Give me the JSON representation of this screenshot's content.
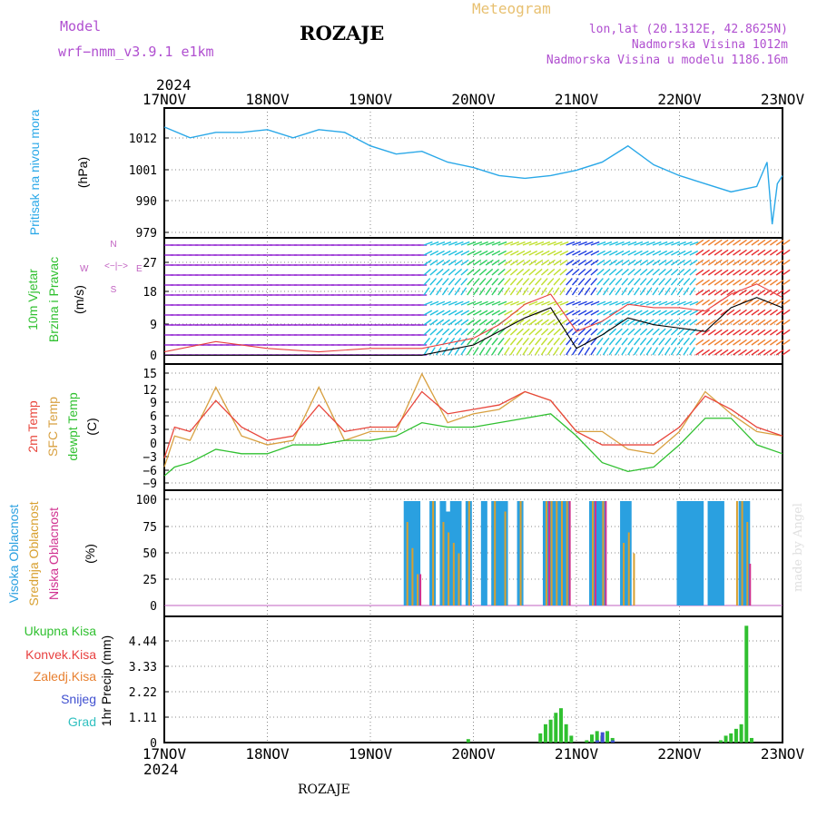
{
  "header": {
    "model_label": "Model",
    "model_name": "wrf−nmm_v3.9.1 e1km",
    "station": "ROZAJE",
    "meteogram": "Meteogram",
    "lonlat": "lon,lat (20.1312E, 42.8625N)",
    "altitude": "Nadmorska Visina 1012m",
    "model_altitude": "Nadmorska Visina u modelu 1186.16m"
  },
  "axes": {
    "year_top": "2024",
    "year_bottom": "2024",
    "dates": [
      "17NOV",
      "18NOV",
      "19NOV",
      "20NOV",
      "21NOV",
      "22NOV",
      "23NOV"
    ]
  },
  "footer": {
    "station": "ROZAJE",
    "credit": "made by Angel"
  },
  "panel_labels": {
    "pressure": {
      "name": "Pritisak na nivou mora",
      "unit": "(hPa)"
    },
    "wind": {
      "name1": "10m Vjetar",
      "name2": "Brzina i Pravac",
      "unit": "(m/s)",
      "compass_w": "W",
      "compass_e": "E",
      "compass_n": "N",
      "compass_s": "S"
    },
    "temp": {
      "t2m": "2m Temp",
      "sfc": "SFC Temp",
      "dew": "dewpt Temp",
      "unit": "(C)"
    },
    "cloud": {
      "high": "Visoka Oblacnost",
      "mid": "Srednja Oblacnost",
      "low": "Niska Oblacnost",
      "unit": "(%)"
    },
    "precip": {
      "total": "Ukupna Kisa",
      "conv": "Konvek.Kisa",
      "frozen": "Zaledj.Kisa",
      "snow": "Snijeg",
      "hail": "Grad",
      "unit": "1hr Precip (mm)"
    }
  },
  "colors": {
    "pressure": "#2aa8e8",
    "t2m": "#e8463c",
    "sfc": "#d8a040",
    "dew": "#30c030",
    "high": "#2aa0e0",
    "mid": "#d8a030",
    "low": "#d03090",
    "total": "#30c030",
    "conv": "#e84040",
    "frozen": "#e88030",
    "snow": "#4050d0",
    "hail": "#30c0c0"
  },
  "chart_data": [
    {
      "type": "line",
      "title": "Pritisak na nivou mora (hPa)",
      "yticks": [
        "1012",
        "1001",
        "990",
        "979"
      ],
      "ylim": [
        979,
        1023
      ],
      "x": [
        0,
        0.25,
        0.5,
        0.75,
        1,
        1.25,
        1.5,
        1.75,
        2,
        2.25,
        2.5,
        2.75,
        3,
        3.25,
        3.5,
        3.75,
        4,
        4.25,
        4.5,
        4.75,
        5,
        5.25,
        5.5,
        5.75,
        5.85,
        5.9,
        5.95,
        6
      ],
      "series": [
        {
          "name": "Pritisak na nivou mora",
          "values": [
            1018,
            1014,
            1016,
            1016,
            1017,
            1014,
            1017,
            1016,
            1011,
            1008,
            1009,
            1005,
            1003,
            1000,
            999,
            1000,
            1002,
            1005,
            1011,
            1004,
            1000,
            997,
            994,
            996,
            1005,
            982,
            997,
            1000
          ]
        }
      ]
    },
    {
      "type": "line",
      "title": "10m Vjetar Brzina i Pravac (m/s)",
      "yticks": [
        "27",
        "18",
        "9",
        "0"
      ],
      "ylim": [
        0,
        34
      ],
      "x": [
        0,
        0.5,
        1,
        1.5,
        2,
        2.5,
        3,
        3.25,
        3.5,
        3.75,
        4,
        4.25,
        4.5,
        4.75,
        5,
        5.25,
        5.5,
        5.75,
        6
      ],
      "series": [
        {
          "name": "10m Vjetar",
          "values": [
            1,
            1,
            1,
            1,
            1,
            1,
            4,
            8,
            12,
            15,
            3,
            7,
            12,
            10,
            9,
            8,
            15,
            18,
            15
          ]
        },
        {
          "name": "Brzina i Pravac",
          "values": [
            2,
            5,
            3,
            2,
            3,
            3,
            6,
            10,
            16,
            19,
            8,
            11,
            16,
            15,
            15,
            14,
            19,
            22,
            18
          ]
        }
      ]
    },
    {
      "type": "line",
      "title": "2m Temp / SFC Temp / dewpt Temp (C)",
      "yticks": [
        "15",
        "12",
        "9",
        "6",
        "3",
        "0",
        "−3",
        "−6",
        "−9"
      ],
      "ylim": [
        -10,
        16
      ],
      "x": [
        0,
        0.1,
        0.25,
        0.5,
        0.75,
        1,
        1.25,
        1.5,
        1.75,
        2,
        2.25,
        2.5,
        2.75,
        3,
        3.25,
        3.5,
        3.75,
        4,
        4.25,
        4.5,
        4.75,
        5,
        5.25,
        5.5,
        5.75,
        6
      ],
      "series": [
        {
          "name": "2m Temp",
          "values": [
            -4,
            3,
            2,
            9,
            3,
            0,
            1,
            8,
            2,
            3,
            3,
            11,
            6,
            7,
            8,
            11,
            9,
            2,
            -1,
            -1,
            -1,
            3,
            10,
            7,
            3,
            1
          ]
        },
        {
          "name": "SFC Temp",
          "values": [
            -6,
            1,
            0,
            12,
            1,
            -1,
            0,
            12,
            0,
            2,
            2,
            15,
            4,
            6,
            7,
            11,
            9,
            2,
            2,
            -2,
            -3,
            2,
            11,
            6,
            2,
            1
          ]
        },
        {
          "name": "dewpt Temp",
          "values": [
            -8,
            -6,
            -5,
            -2,
            -3,
            -3,
            -1,
            -1,
            0,
            0,
            1,
            4,
            3,
            3,
            4,
            5,
            6,
            1,
            -5,
            -7,
            -6,
            -1,
            5,
            5,
            -1,
            -3
          ]
        }
      ]
    },
    {
      "type": "bar",
      "title": "Visoka / Srednja / Niska Oblacnost (%)",
      "yticks": [
        "100",
        "75",
        "50",
        "25",
        "0"
      ],
      "ylim": [
        0,
        100
      ],
      "x": [
        2.35,
        2.4,
        2.45,
        2.6,
        2.7,
        2.75,
        2.8,
        2.85,
        2.95,
        3.1,
        3.2,
        3.25,
        3.3,
        3.45,
        3.7,
        3.75,
        3.8,
        3.85,
        3.9,
        4.15,
        4.2,
        4.25,
        4.45,
        4.5,
        4.55,
        5.0,
        5.05,
        5.1,
        5.15,
        5.2,
        5.3,
        5.35,
        5.4,
        5.55,
        5.6,
        5.65
      ],
      "series": [
        {
          "name": "Visoka Oblacnost",
          "values": [
            100,
            100,
            100,
            100,
            100,
            90,
            100,
            100,
            100,
            100,
            100,
            100,
            100,
            100,
            100,
            100,
            100,
            100,
            100,
            100,
            100,
            100,
            100,
            100,
            0,
            100,
            100,
            100,
            100,
            100,
            100,
            100,
            100,
            0,
            100,
            100
          ]
        },
        {
          "name": "Srednja Oblacnost",
          "values": [
            80,
            55,
            30,
            100,
            80,
            70,
            60,
            50,
            100,
            0,
            100,
            0,
            90,
            100,
            100,
            100,
            100,
            100,
            100,
            100,
            0,
            100,
            60,
            70,
            50,
            0,
            0,
            0,
            0,
            0,
            0,
            0,
            0,
            100,
            100,
            80
          ]
        },
        {
          "name": "Niska Oblacnost",
          "values": [
            0,
            0,
            30,
            0,
            0,
            0,
            0,
            0,
            0,
            0,
            0,
            0,
            0,
            0,
            100,
            0,
            0,
            0,
            100,
            100,
            0,
            100,
            0,
            0,
            0,
            0,
            0,
            0,
            0,
            0,
            0,
            0,
            0,
            0,
            0,
            40
          ]
        }
      ]
    },
    {
      "type": "bar",
      "title": "1hr Precip (mm)",
      "yticks": [
        "4.44",
        "3.33",
        "2.22",
        "1.11",
        "0"
      ],
      "ylim": [
        0,
        5
      ],
      "x": [
        2.95,
        3.65,
        3.7,
        3.75,
        3.8,
        3.85,
        3.9,
        3.95,
        4.1,
        4.15,
        4.2,
        4.25,
        4.3,
        4.35,
        5.4,
        5.45,
        5.5,
        5.55,
        5.6,
        5.65,
        5.7
      ],
      "series": [
        {
          "name": "Ukupna Kisa",
          "values": [
            0.15,
            0.4,
            0.8,
            1.0,
            1.3,
            1.5,
            0.8,
            0.3,
            0.1,
            0.35,
            0.5,
            0.3,
            0.5,
            0.2,
            0.1,
            0.3,
            0.4,
            0.6,
            0.8,
            5.1,
            0.2
          ]
        },
        {
          "name": "Snijeg",
          "values": [
            0,
            0,
            0,
            0,
            0,
            0,
            0,
            0,
            0,
            0.1,
            0.45,
            0,
            0.1,
            0,
            0,
            0,
            0,
            0,
            0,
            0,
            0
          ]
        }
      ]
    }
  ]
}
